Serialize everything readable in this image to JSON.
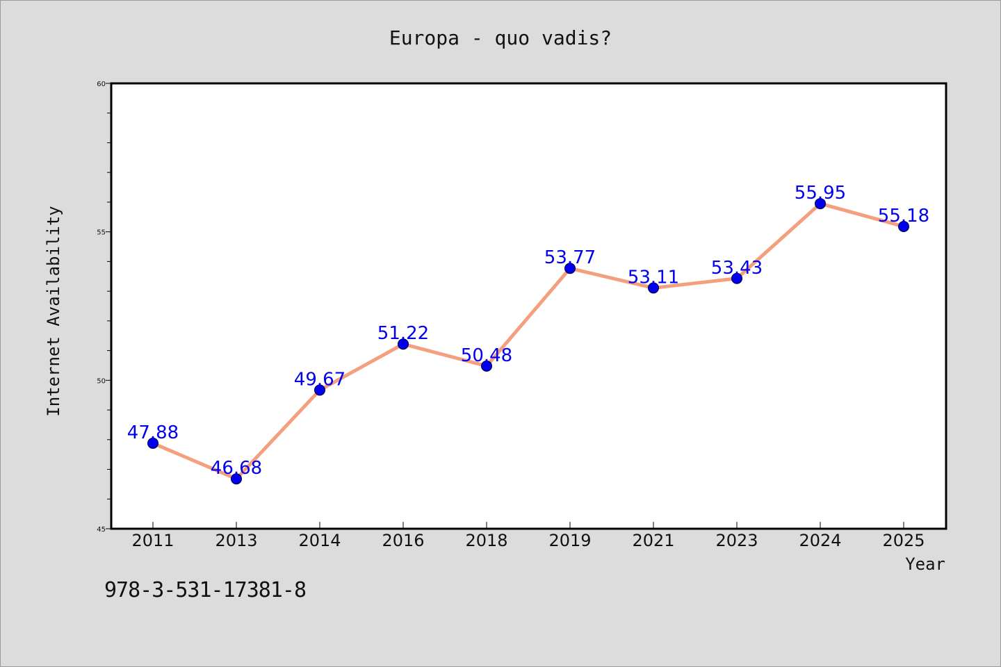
{
  "chart_data": {
    "type": "line",
    "title": "Europa - quo vadis?",
    "xlabel": "Year",
    "ylabel": "Internet Availability",
    "categories": [
      "2011",
      "2013",
      "2014",
      "2016",
      "2018",
      "2019",
      "2021",
      "2023",
      "2024",
      "2025"
    ],
    "values": [
      47.88,
      46.68,
      49.67,
      51.22,
      50.48,
      53.77,
      53.11,
      53.43,
      55.95,
      55.18
    ],
    "data_labels": [
      "47.88",
      "46.68",
      "49.67",
      "51.22",
      "50.48",
      "53.77",
      "53.11",
      "53.43",
      "55.95",
      "55.18"
    ],
    "ylim": [
      45,
      60
    ],
    "yticks": [
      45,
      50,
      55,
      60
    ],
    "grid": false,
    "legend": "none",
    "line_color": "#f4a07e",
    "marker_color": "#0000ee",
    "label_color": "#0000ee"
  },
  "footer": {
    "code": "978-3-531-17381-8"
  }
}
